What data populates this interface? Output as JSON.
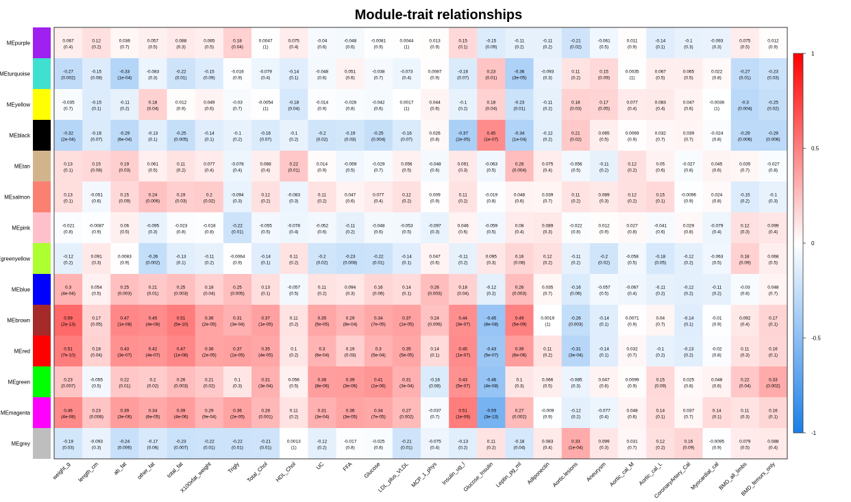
{
  "chart_data": {
    "type": "heatmap",
    "title": "Module-trait relationships",
    "xlabel": "",
    "ylabel": "",
    "color_scale": {
      "min": -1,
      "max": 1,
      "low": "#1a7fe8",
      "mid": "#ffffff",
      "high": "#ff0000"
    },
    "legend": {
      "position": "right",
      "ticks": [
        "1",
        "0.5",
        "0",
        "-0.5",
        "-1"
      ]
    },
    "rows": [
      "MEpurple",
      "MEturquoise",
      "MEyellow",
      "MEblack",
      "MEtan",
      "MEsalmon",
      "MEpink",
      "MEgreenyellow",
      "MEblue",
      "MEbrown",
      "MEred",
      "MEgreen",
      "MEmagenta",
      "MEgrey"
    ],
    "row_colors": [
      "#a020f0",
      "#40e0d0",
      "#ffff00",
      "#000000",
      "#d2b48c",
      "#fa8072",
      "#ffc0cb",
      "#adff2f",
      "#0000ff",
      "#a52a2a",
      "#ff0000",
      "#00ff00",
      "#ff00ff",
      "#bebebe"
    ],
    "columns": [
      "weight_g",
      "length_cm",
      "ab_fat",
      "other_fat",
      "total_fat",
      "X100xfat_weight",
      "Trigly",
      "Total_Chol",
      "HDL_Chol",
      "UC",
      "FFA",
      "Glucose",
      "LDL_plus_VLDL",
      "MCP_1_phys",
      "Insulin_ug_l",
      "Glucose_Insulin",
      "Leptin_pg_ml",
      "Adiponectin",
      "Aortic.lesions",
      "Aneurysm",
      "Aortic_cal_M",
      "Aortic_cal_L",
      "CoronaryArtery_Cal",
      "Myocardial_cal",
      "BMD_all_limbs",
      "BMD_femurs_only"
    ],
    "r": [
      [
        "0.067",
        "0.12",
        "0.036",
        "0.057",
        "0.088",
        "0.065",
        "0.18",
        "0.0047",
        "0.075",
        "-0.04",
        "-0.048",
        "-0.0081",
        "0.0044",
        "0.013",
        "0.15",
        "-0.15",
        "-0.11",
        "-0.11",
        "-0.21",
        "-0.061",
        "0.011",
        "-0.14",
        "-0.1",
        "-0.093",
        "0.075",
        "0.012"
      ],
      [
        "-0.27",
        "-0.15",
        "-0.33",
        "-0.083",
        "-0.22",
        "-0.15",
        "-0.016",
        "-0.079",
        "-0.14",
        "-0.048",
        "0.051",
        "-0.038",
        "-0.073",
        "0.0087",
        "-0.16",
        "0.23",
        "-0.36",
        "-0.093",
        "0.11",
        "0.15",
        "0.0035",
        "0.067",
        "0.065",
        "0.022",
        "-0.27",
        "-0.23"
      ],
      [
        "-0.035",
        "-0.15",
        "-0.11",
        "0.18",
        "0.012",
        "0.049",
        "-0.03",
        "-0.0054",
        "-0.18",
        "-0.014",
        "-0.026",
        "-0.042",
        "0.0017",
        "0.044",
        "-0.1",
        "0.18",
        "-0.23",
        "-0.11",
        "0.18",
        "0.17",
        "0.077",
        "0.083",
        "0.047",
        "-0.0036",
        "-0.3",
        "-0.25"
      ],
      [
        "-0.32",
        "-0.16",
        "-0.29",
        "-0.13",
        "-0.25",
        "-0.14",
        "-0.1",
        "-0.16",
        "-0.1",
        "-0.2",
        "-0.19",
        "-0.25",
        "-0.16",
        "0.026",
        "-0.37",
        "0.45",
        "-0.34",
        "-0.12",
        "0.21",
        "0.065",
        "0.0069",
        "0.032",
        "0.039",
        "-0.024",
        "-0.29",
        "-0.29"
      ],
      [
        "0.13",
        "0.15",
        "0.19",
        "0.061",
        "0.11",
        "0.077",
        "-0.078",
        "0.068",
        "0.22",
        "0.014",
        "-0.059",
        "-0.029",
        "0.056",
        "-0.048",
        "0.091",
        "-0.063",
        "0.26",
        "0.075",
        "-0.056",
        "-0.11",
        "0.12",
        "0.05",
        "-0.027",
        "0.045",
        "0.035",
        "-0.027"
      ],
      [
        "0.13",
        "-0.051",
        "0.15",
        "0.24",
        "0.19",
        "0.2",
        "-0.094",
        "0.12",
        "-0.083",
        "0.11",
        "0.047",
        "0.077",
        "0.12",
        "0.009",
        "0.11",
        "-0.019",
        "0.048",
        "0.039",
        "0.11",
        "0.089",
        "0.12",
        "0.15",
        "-0.0096",
        "0.024",
        "-0.15",
        "-0.1"
      ],
      [
        "-0.021",
        "-0.0087",
        "0.06",
        "-0.095",
        "-0.023",
        "-0.018",
        "-0.22",
        "-0.055",
        "-0.078",
        "-0.052",
        "-0.11",
        "-0.048",
        "-0.053",
        "-0.097",
        "0.046",
        "-0.059",
        "0.08",
        "0.089",
        "-0.022",
        "0.012",
        "0.027",
        "-0.041",
        "0.029",
        "-0.079",
        "0.12",
        "0.099"
      ],
      [
        "-0.12",
        "0.091",
        "0.0083",
        "-0.26",
        "-0.13",
        "-0.11",
        "-0.0064",
        "-0.14",
        "0.11",
        "-0.2",
        "-0.23",
        "-0.22",
        "-0.14",
        "0.047",
        "-0.11",
        "0.095",
        "0.16",
        "0.12",
        "-0.11",
        "-0.2",
        "-0.058",
        "-0.18",
        "-0.12",
        "-0.063",
        "0.18",
        "0.068"
      ],
      [
        "0.3",
        "0.054",
        "0.25",
        "0.21",
        "0.25",
        "0.18",
        "0.25",
        "0.13",
        "-0.057",
        "0.11",
        "0.094",
        "0.16",
        "0.14",
        "0.26",
        "0.18",
        "-0.12",
        "0.26",
        "0.035",
        "-0.16",
        "-0.057",
        "-0.067",
        "-0.11",
        "-0.12",
        "-0.11",
        "-0.03",
        "0.048"
      ],
      [
        "0.59",
        "0.17",
        "0.47",
        "0.45",
        "0.51",
        "0.36",
        "0.31",
        "0.37",
        "0.11",
        "0.35",
        "0.29",
        "0.34",
        "0.37",
        "0.24",
        "0.44",
        "-0.45",
        "0.49",
        "0.0019",
        "-0.26",
        "-0.14",
        "0.0071",
        "0.04",
        "-0.14",
        "-0.01",
        "0.092",
        "0.17"
      ],
      [
        "0.51",
        "0.18",
        "0.43",
        "0.42",
        "0.47",
        "0.36",
        "0.37",
        "0.35",
        "0.1",
        "0.3",
        "0.19",
        "0.3",
        "0.35",
        "0.14",
        "0.45",
        "-0.43",
        "0.39",
        "0.11",
        "-0.31",
        "-0.14",
        "0.032",
        "-0.1",
        "-0.13",
        "-0.02",
        "0.11",
        "0.16"
      ],
      [
        "0.23",
        "-0.055",
        "0.22",
        "0.2",
        "0.26",
        "0.21",
        "0.1",
        "0.31",
        "0.056",
        "0.38",
        "0.39",
        "0.41",
        "0.31",
        "-0.16",
        "0.43",
        "-0.46",
        "0.1",
        "0.066",
        "-0.085",
        "0.047",
        "0.0099",
        "0.15",
        "0.025",
        "0.048",
        "0.22",
        "0.33"
      ],
      [
        "0.46",
        "0.23",
        "0.39",
        "0.34",
        "0.39",
        "0.29",
        "0.36",
        "0.28",
        "0.11",
        "0.31",
        "0.36",
        "0.34",
        "0.27",
        "-0.037",
        "0.51",
        "-0.59",
        "0.27",
        "-0.009",
        "-0.12",
        "-0.077",
        "0.048",
        "0.14",
        "0.037",
        "0.14",
        "0.11",
        "0.16"
      ],
      [
        "-0.19",
        "-0.093",
        "-0.24",
        "-0.17",
        "-0.23",
        "-0.22",
        "-0.22",
        "-0.21",
        "0.0013",
        "-0.12",
        "-0.017",
        "-0.025",
        "-0.21",
        "-0.075",
        "-0.13",
        "0.11",
        "-0.18",
        "0.083",
        "0.33",
        "0.099",
        "0.031",
        "0.12",
        "0.16",
        "-0.0095",
        "0.079",
        "0.088"
      ]
    ],
    "p": [
      [
        "(0.4)",
        "(0.2)",
        "(0.7)",
        "(0.5)",
        "(0.3)",
        "(0.5)",
        "(0.04)",
        "(1)",
        "(0.4)",
        "(0.6)",
        "(0.6)",
        "(0.9)",
        "(1)",
        "(0.9)",
        "(0.1)",
        "(0.09)",
        "(0.2)",
        "(0.2)",
        "(0.02)",
        "(0.5)",
        "(0.9)",
        "(0.1)",
        "(0.3)",
        "(0.3)",
        "(0.5)",
        "(0.9)"
      ],
      [
        "(0.002)",
        "(0.08)",
        "(1e-04)",
        "(0.3)",
        "(0.01)",
        "(0.09)",
        "(0.9)",
        "(0.4)",
        "(0.1)",
        "(0.6)",
        "(0.6)",
        "(0.7)",
        "(0.4)",
        "(0.9)",
        "(0.07)",
        "(0.01)",
        "(3e-05)",
        "(0.3)",
        "(0.2)",
        "(0.09)",
        "(1)",
        "(0.5)",
        "(0.5)",
        "(0.8)",
        "(0.01)",
        "(0.03)"
      ],
      [
        "(0.7)",
        "(0.1)",
        "(0.2)",
        "(0.04)",
        "(0.9)",
        "(0.6)",
        "(0.7)",
        "(1)",
        "(0.04)",
        "(0.9)",
        "(0.8)",
        "(0.6)",
        "(1)",
        "(0.6)",
        "(0.2)",
        "(0.04)",
        "(0.01)",
        "(0.2)",
        "(0.03)",
        "(0.05)",
        "(0.4)",
        "(0.4)",
        "(0.6)",
        "(1)",
        "(0.004)",
        "(0.02)"
      ],
      [
        "(2e-04)",
        "(0.07)",
        "(6e-04)",
        "(0.1)",
        "(0.005)",
        "(0.1)",
        "(0.2)",
        "(0.07)",
        "(0.2)",
        "(0.02)",
        "(0.03)",
        "(0.004)",
        "(0.07)",
        "(0.8)",
        "(2e-05)",
        "(1e-07)",
        "(1e-04)",
        "(0.2)",
        "(0.02)",
        "(0.5)",
        "(0.9)",
        "(0.7)",
        "(0.7)",
        "(0.8)",
        "(0.006)",
        "(0.006)"
      ],
      [
        "(0.1)",
        "(0.08)",
        "(0.03)",
        "(0.5)",
        "(0.2)",
        "(0.4)",
        "(0.4)",
        "(0.4)",
        "(0.01)",
        "(0.9)",
        "(0.5)",
        "(0.7)",
        "(0.5)",
        "(0.6)",
        "(0.3)",
        "(0.5)",
        "(0.004)",
        "(0.4)",
        "(0.5)",
        "(0.2)",
        "(0.2)",
        "(0.6)",
        "(0.8)",
        "(0.6)",
        "(0.7)",
        "(0.8)"
      ],
      [
        "(0.1)",
        "(0.6)",
        "(0.09)",
        "(0.006)",
        "(0.03)",
        "(0.02)",
        "(0.3)",
        "(0.2)",
        "(0.3)",
        "(0.2)",
        "(0.6)",
        "(0.4)",
        "(0.2)",
        "(0.9)",
        "(0.2)",
        "(0.8)",
        "(0.6)",
        "(0.7)",
        "(0.2)",
        "(0.3)",
        "(0.2)",
        "(0.1)",
        "(0.9)",
        "(0.8)",
        "(0.2)",
        "(0.3)"
      ],
      [
        "(0.8)",
        "(0.9)",
        "(0.5)",
        "(0.3)",
        "(0.8)",
        "(0.8)",
        "(0.01)",
        "(0.5)",
        "(0.4)",
        "(0.6)",
        "(0.2)",
        "(0.6)",
        "(0.5)",
        "(0.3)",
        "(0.6)",
        "(0.5)",
        "(0.4)",
        "(0.3)",
        "(0.8)",
        "(0.9)",
        "(0.8)",
        "(0.6)",
        "(0.8)",
        "(0.4)",
        "(0.3)",
        "(0.4)"
      ],
      [
        "(0.2)",
        "(0.3)",
        "(0.9)",
        "(0.002)",
        "(0.1)",
        "(0.2)",
        "(0.9)",
        "(0.1)",
        "(0.2)",
        "(0.02)",
        "(0.008)",
        "(0.01)",
        "(0.1)",
        "(0.6)",
        "(0.2)",
        "(0.3)",
        "(0.08)",
        "(0.2)",
        "(0.2)",
        "(0.02)",
        "(0.5)",
        "(0.05)",
        "(0.2)",
        "(0.5)",
        "(0.09)",
        "(0.5)"
      ],
      [
        "(4e-04)",
        "(0.5)",
        "(0.003)",
        "(0.01)",
        "(0.003)",
        "(0.04)",
        "(0.005)",
        "(0.1)",
        "(0.5)",
        "(0.2)",
        "(0.3)",
        "(0.06)",
        "(0.1)",
        "(0.003)",
        "(0.04)",
        "(0.2)",
        "(0.003)",
        "(0.7)",
        "(0.06)",
        "(0.5)",
        "(0.4)",
        "(0.2)",
        "(0.2)",
        "(0.2)",
        "(0.8)",
        "(0.7)"
      ],
      [
        "(2e-13)",
        "(0.05)",
        "(1e-08)",
        "(4e-08)",
        "(5e-10)",
        "(2e-05)",
        "(3e-04)",
        "(1e-05)",
        "(0.2)",
        "(5e-05)",
        "(8e-04)",
        "(7e-05)",
        "(1e-05)",
        "(0.006)",
        "(3e-07)",
        "(8e-08)",
        "(5e-09)",
        "(1)",
        "(0.003)",
        "(0.1)",
        "(0.9)",
        "(0.7)",
        "(0.1)",
        "(0.9)",
        "(0.4)",
        "(0.1)"
      ],
      [
        "(7e-10)",
        "(0.04)",
        "(3e-07)",
        "(4e-07)",
        "(1e-08)",
        "(2e-05)",
        "(1e-05)",
        "(4e-05)",
        "(0.2)",
        "(6e-04)",
        "(0.03)",
        "(5e-04)",
        "(5e-05)",
        "(0.1)",
        "(1e-07)",
        "(5e-07)",
        "(6e-06)",
        "(0.2)",
        "(3e-04)",
        "(0.1)",
        "(0.7)",
        "(0.2)",
        "(0.2)",
        "(0.8)",
        "(0.3)",
        "(0.1)"
      ],
      [
        "(0.007)",
        "(0.5)",
        "(0.01)",
        "(0.02)",
        "(0.003)",
        "(0.02)",
        "(0.3)",
        "(3e-04)",
        "(0.5)",
        "(8e-06)",
        "(3e-06)",
        "(1e-06)",
        "(3e-04)",
        "(0.08)",
        "(5e-07)",
        "(4e-08)",
        "(0.3)",
        "(0.5)",
        "(0.3)",
        "(0.6)",
        "(0.9)",
        "(0.09)",
        "(0.8)",
        "(0.6)",
        "(0.04)",
        "(0.002)"
      ],
      [
        "(4e-08)",
        "(0.008)",
        "(3e-06)",
        "(6e-05)",
        "(4e-06)",
        "(9e-04)",
        "(2e-05)",
        "(0.001)",
        "(0.2)",
        "(3e-04)",
        "(3e-05)",
        "(7e-05)",
        "(0.002)",
        "(0.7)",
        "(1e-09)",
        "(3e-13)",
        "(0.002)",
        "(0.9)",
        "(0.2)",
        "(0.4)",
        "(0.6)",
        "(0.1)",
        "(0.7)",
        "(0.1)",
        "(0.3)",
        "(0.1)"
      ],
      [
        "(0.03)",
        "(0.3)",
        "(0.006)",
        "(0.06)",
        "(0.007)",
        "(0.01)",
        "(0.01)",
        "(0.01)",
        "(1)",
        "(0.2)",
        "(0.8)",
        "(0.8)",
        "(0.01)",
        "(0.4)",
        "(0.2)",
        "(0.2)",
        "(0.04)",
        "(0.4)",
        "(1e-04)",
        "(0.3)",
        "(0.7)",
        "(0.2)",
        "(0.09)",
        "(0.9)",
        "(0.5)",
        "(0.4)"
      ]
    ]
  }
}
